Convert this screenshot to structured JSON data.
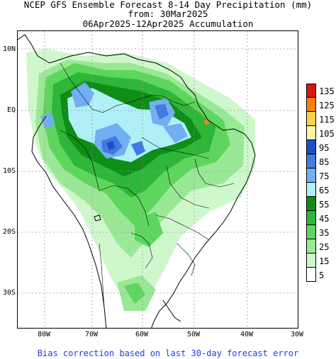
{
  "title": {
    "line1": "NCEP GFS Ensemble Forecast 8-14 Day Precipitation (mm)",
    "line2": "from: 30Mar2025",
    "line3": "06Apr2025-12Apr2025 Accumulation"
  },
  "axes": {
    "lat_labels": [
      "10N",
      "EQ",
      "10S",
      "20S",
      "30S"
    ],
    "lon_labels": [
      "80W",
      "70W",
      "60W",
      "50W",
      "40W",
      "30W"
    ]
  },
  "legend": {
    "items": [
      {
        "label": "135",
        "color": "#d9180c"
      },
      {
        "label": "125",
        "color": "#f7820f"
      },
      {
        "label": "115",
        "color": "#f9d24a"
      },
      {
        "label": "105",
        "color": "#fbf5a8"
      },
      {
        "label": "95",
        "color": "#1e4fc8"
      },
      {
        "label": "85",
        "color": "#3f7be2"
      },
      {
        "label": "75",
        "color": "#73aef2"
      },
      {
        "label": "65",
        "color": "#aef0f6"
      },
      {
        "label": "55",
        "color": "#0e8d18"
      },
      {
        "label": "45",
        "color": "#2fb63a"
      },
      {
        "label": "35",
        "color": "#5ed65e"
      },
      {
        "label": "25",
        "color": "#9ae896"
      },
      {
        "label": "15",
        "color": "#cff7cc"
      },
      {
        "label": "5",
        "color": "#ffffff"
      }
    ]
  },
  "footer": "Bias correction based on last 30-day forecast error"
}
